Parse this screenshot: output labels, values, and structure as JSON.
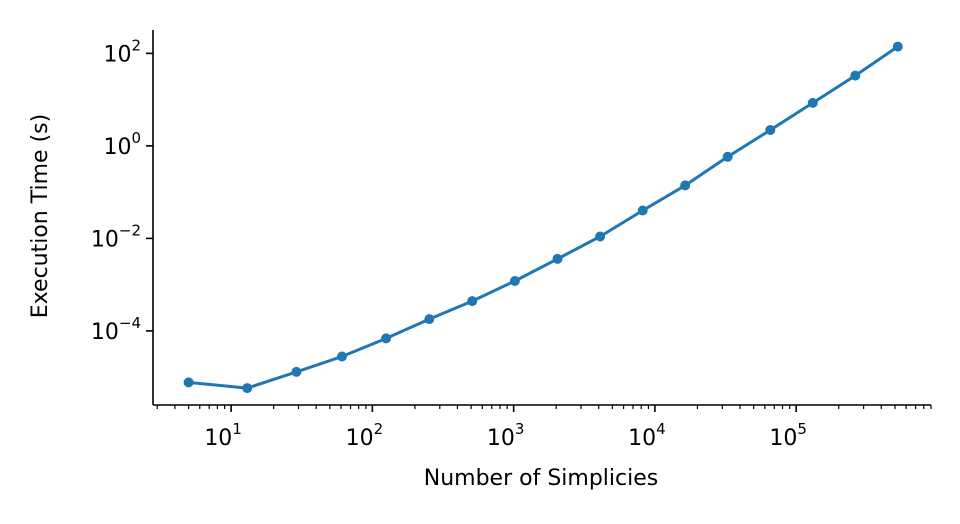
{
  "chart_data": {
    "type": "line",
    "title": "",
    "xlabel": "Number of Simplicies",
    "ylabel": "Execution Time (s)",
    "xscale": "log",
    "yscale": "log",
    "xlim": [
      2.8,
      900000
    ],
    "ylim": [
      2.5e-06,
      320
    ],
    "grid": false,
    "legend": "none",
    "color": "#1f77b4",
    "x_ticks": [
      {
        "base": "10",
        "exp": "1",
        "value": 10
      },
      {
        "base": "10",
        "exp": "2",
        "value": 100
      },
      {
        "base": "10",
        "exp": "3",
        "value": 1000
      },
      {
        "base": "10",
        "exp": "4",
        "value": 10000
      },
      {
        "base": "10",
        "exp": "5",
        "value": 100000
      }
    ],
    "y_ticks": [
      {
        "base": "10",
        "exp": "−4",
        "value": 0.0001
      },
      {
        "base": "10",
        "exp": "−2",
        "value": 0.01
      },
      {
        "base": "10",
        "exp": "0",
        "value": 1
      },
      {
        "base": "10",
        "exp": "2",
        "value": 100
      }
    ],
    "series": [
      {
        "x": [
          5,
          13,
          29,
          61,
          125,
          253,
          509,
          1021,
          2045,
          4093,
          8189,
          16381,
          32765,
          65533,
          131069,
          262141,
          524285
        ],
        "y": [
          7.7e-06,
          5.8e-06,
          1.3e-05,
          2.8e-05,
          6.9e-05,
          0.00018,
          0.00044,
          0.0012,
          0.0036,
          0.011,
          0.04,
          0.14,
          0.58,
          2.2,
          8.5,
          33,
          140
        ]
      }
    ]
  }
}
